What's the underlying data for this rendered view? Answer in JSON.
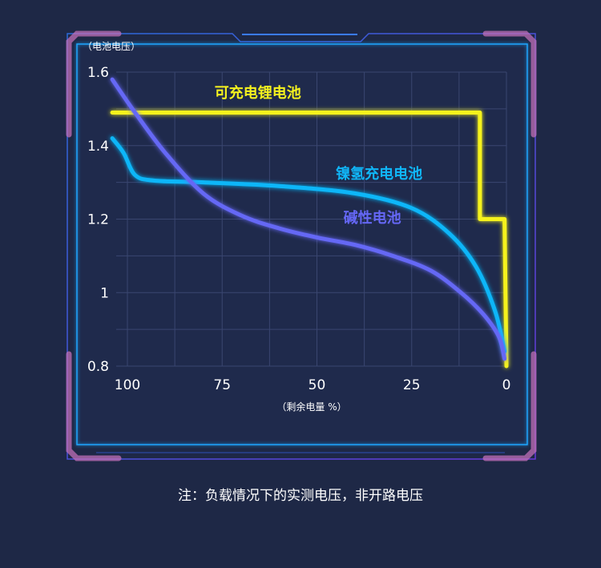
{
  "chart_data": {
    "type": "line",
    "ylabel": "（电池电压）",
    "xlabel": "（剩余电量 %）",
    "xlim": [
      100,
      0
    ],
    "ylim": [
      0.8,
      1.6
    ],
    "x_ticks": [
      "100",
      "75",
      "50",
      "25",
      "0"
    ],
    "y_ticks": [
      "1.6",
      "1.4",
      "1.2",
      "1",
      "0.8"
    ],
    "grid": true,
    "series": [
      {
        "name": "可充电锂电池",
        "color": "#f5f21e",
        "x": [
          104,
          7,
          7,
          0.5,
          0
        ],
        "y": [
          1.49,
          1.49,
          1.2,
          1.2,
          0.8
        ]
      },
      {
        "name": "镍氢充电电池",
        "color": "#10b6f8",
        "x": [
          104,
          101,
          98,
          93,
          80,
          60,
          40,
          25,
          15,
          8,
          3,
          0.5
        ],
        "y": [
          1.42,
          1.38,
          1.32,
          1.305,
          1.3,
          1.29,
          1.27,
          1.23,
          1.16,
          1.07,
          0.95,
          0.84
        ]
      },
      {
        "name": "碱性电池",
        "color": "#6567f5",
        "x": [
          104,
          98,
          90,
          80,
          70,
          60,
          50,
          40,
          30,
          20,
          12,
          6,
          2,
          0.5
        ],
        "y": [
          1.58,
          1.49,
          1.38,
          1.27,
          1.21,
          1.175,
          1.15,
          1.13,
          1.1,
          1.06,
          1.0,
          0.94,
          0.88,
          0.82
        ]
      }
    ],
    "series_label_positions": {
      "可充电锂电池": [
        77,
        1.53
      ],
      "镍氢充电电池": [
        45,
        1.31
      ],
      "碱性电池": [
        43,
        1.19
      ]
    }
  },
  "footnote": "注：负载情况下的实测电压，非开路电压"
}
